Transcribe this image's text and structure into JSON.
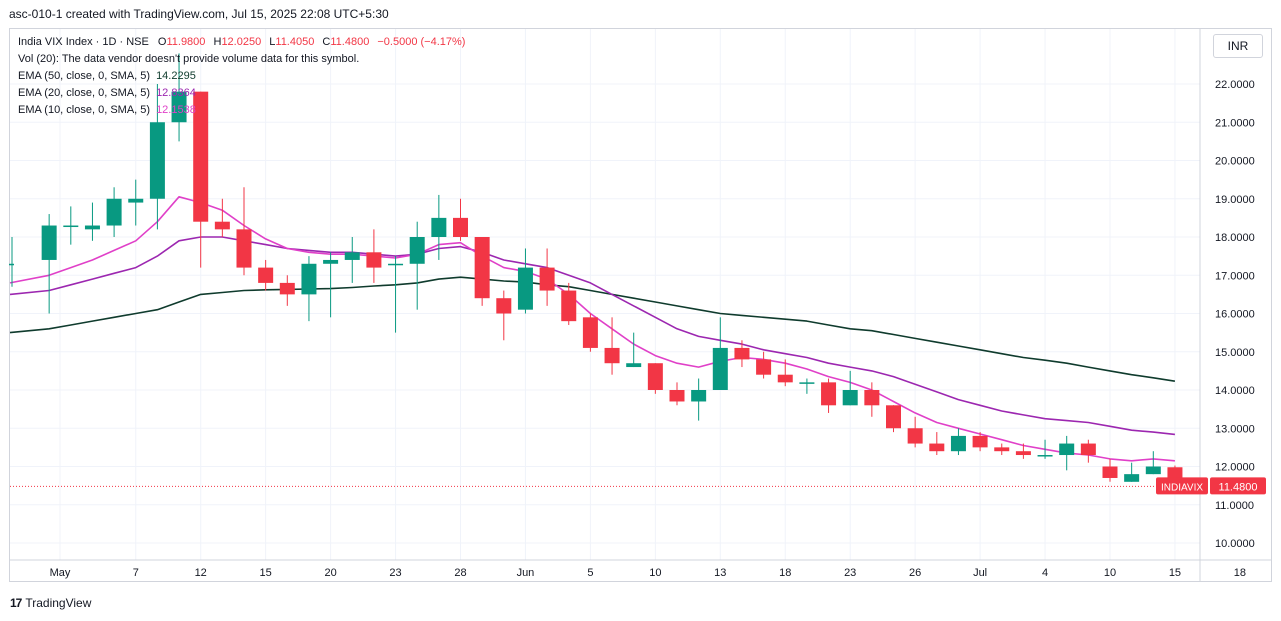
{
  "header": {
    "title": "asc-010-1 created with TradingView.com, Jul 15, 2025 22:08 UTC+5:30"
  },
  "legend": {
    "symbol_line": "India VIX Index · 1D · NSE",
    "open_label": "O",
    "open": "11.9800",
    "high_label": "H",
    "high": "12.0250",
    "low_label": "L",
    "low": "11.4050",
    "close_label": "C",
    "close": "11.4800",
    "change": "−0.5000 (−4.17%)",
    "volume_note": "Vol (20): The data vendor doesn't provide volume data for this symbol.",
    "ema50_label": "EMA (50, close, 0, SMA, 5)",
    "ema50_value": "14.2295",
    "ema20_label": "EMA (20, close, 0, SMA, 5)",
    "ema20_value": "12.8364",
    "ema10_label": "EMA (10, close, 0, SMA, 5)",
    "ema10_value": "12.1538"
  },
  "currency": "INR",
  "footer": {
    "brand": "TradingView",
    "logo_text": "17"
  },
  "colors": {
    "up": "#089981",
    "down": "#f23645",
    "ema50": "#0f3b2d",
    "ema20": "#9c27b0",
    "ema10": "#e040c8",
    "grid": "#f0f3fa"
  },
  "chart_data": {
    "type": "candlestick",
    "title": "India VIX Index · 1D · NSE",
    "ylim": [
      9.6,
      23.0
    ],
    "y_ticks": [
      10.0,
      11.0,
      12.0,
      13.0,
      14.0,
      15.0,
      16.0,
      17.0,
      18.0,
      19.0,
      20.0,
      21.0,
      22.0
    ],
    "y_tick_labels": [
      "10.0000",
      "11.0000",
      "12.0000",
      "13.0000",
      "14.0000",
      "15.0000",
      "16.0000",
      "17.0000",
      "18.0000",
      "19.0000",
      "20.0000",
      "21.0000",
      "22.0000"
    ],
    "x_tick_labels": [
      "May",
      "7",
      "12",
      "15",
      "20",
      "23",
      "28",
      "Jun",
      "5",
      "10",
      "13",
      "18",
      "23",
      "26",
      "Jul",
      "4",
      "10",
      "15",
      "18"
    ],
    "x_tick_index": [
      1.5,
      5,
      8,
      11,
      14,
      17,
      20,
      23,
      26,
      29,
      32,
      35,
      38,
      41,
      44,
      47,
      50,
      53,
      56
    ],
    "last_price_label": "INDIAVIX",
    "last_price": "11.4800",
    "candles": [
      {
        "o": 17.3,
        "h": 18.0,
        "l": 16.7,
        "c": 17.3
      },
      {
        "o": 17.4,
        "h": 18.6,
        "l": 16.0,
        "c": 18.3
      },
      {
        "o": 18.3,
        "h": 18.8,
        "l": 17.8,
        "c": 18.3
      },
      {
        "o": 18.2,
        "h": 18.9,
        "l": 17.9,
        "c": 18.3
      },
      {
        "o": 18.3,
        "h": 19.3,
        "l": 18.0,
        "c": 19.0
      },
      {
        "o": 18.9,
        "h": 19.5,
        "l": 18.3,
        "c": 19.0
      },
      {
        "o": 19.0,
        "h": 22.0,
        "l": 18.2,
        "c": 21.0
      },
      {
        "o": 21.0,
        "h": 22.8,
        "l": 20.5,
        "c": 21.8
      },
      {
        "o": 21.8,
        "h": 21.8,
        "l": 17.2,
        "c": 18.4
      },
      {
        "o": 18.4,
        "h": 19.0,
        "l": 18.0,
        "c": 18.2
      },
      {
        "o": 18.2,
        "h": 19.3,
        "l": 17.0,
        "c": 17.2
      },
      {
        "o": 17.2,
        "h": 17.4,
        "l": 16.6,
        "c": 16.8
      },
      {
        "o": 16.8,
        "h": 17.0,
        "l": 16.2,
        "c": 16.5
      },
      {
        "o": 16.5,
        "h": 17.5,
        "l": 15.8,
        "c": 17.3
      },
      {
        "o": 17.3,
        "h": 17.6,
        "l": 15.9,
        "c": 17.4
      },
      {
        "o": 17.4,
        "h": 18.0,
        "l": 16.8,
        "c": 17.6
      },
      {
        "o": 17.6,
        "h": 18.2,
        "l": 16.8,
        "c": 17.2
      },
      {
        "o": 17.3,
        "h": 17.5,
        "l": 15.5,
        "c": 17.3
      },
      {
        "o": 17.3,
        "h": 18.4,
        "l": 16.1,
        "c": 18.0
      },
      {
        "o": 18.0,
        "h": 19.1,
        "l": 17.4,
        "c": 18.5
      },
      {
        "o": 18.5,
        "h": 19.0,
        "l": 17.9,
        "c": 18.0
      },
      {
        "o": 18.0,
        "h": 18.0,
        "l": 16.2,
        "c": 16.4
      },
      {
        "o": 16.4,
        "h": 16.6,
        "l": 15.3,
        "c": 16.0
      },
      {
        "o": 16.1,
        "h": 17.7,
        "l": 16.0,
        "c": 17.2
      },
      {
        "o": 17.2,
        "h": 17.7,
        "l": 16.2,
        "c": 16.6
      },
      {
        "o": 16.6,
        "h": 16.8,
        "l": 15.7,
        "c": 15.8
      },
      {
        "o": 15.9,
        "h": 16.0,
        "l": 15.0,
        "c": 15.1
      },
      {
        "o": 15.1,
        "h": 15.9,
        "l": 14.4,
        "c": 14.7
      },
      {
        "o": 14.6,
        "h": 15.5,
        "l": 14.6,
        "c": 14.7
      },
      {
        "o": 14.7,
        "h": 14.7,
        "l": 13.9,
        "c": 14.0
      },
      {
        "o": 14.0,
        "h": 14.2,
        "l": 13.6,
        "c": 13.7
      },
      {
        "o": 13.7,
        "h": 14.3,
        "l": 13.2,
        "c": 14.0
      },
      {
        "o": 14.0,
        "h": 15.9,
        "l": 14.0,
        "c": 15.1
      },
      {
        "o": 15.1,
        "h": 15.3,
        "l": 14.6,
        "c": 14.8
      },
      {
        "o": 14.8,
        "h": 15.0,
        "l": 14.3,
        "c": 14.4
      },
      {
        "o": 14.4,
        "h": 14.8,
        "l": 14.1,
        "c": 14.2
      },
      {
        "o": 14.2,
        "h": 14.3,
        "l": 13.9,
        "c": 14.2
      },
      {
        "o": 14.2,
        "h": 14.3,
        "l": 13.4,
        "c": 13.6
      },
      {
        "o": 13.6,
        "h": 14.5,
        "l": 13.6,
        "c": 14.0
      },
      {
        "o": 14.0,
        "h": 14.2,
        "l": 13.3,
        "c": 13.6
      },
      {
        "o": 13.6,
        "h": 13.6,
        "l": 12.9,
        "c": 13.0
      },
      {
        "o": 13.0,
        "h": 13.3,
        "l": 12.5,
        "c": 12.6
      },
      {
        "o": 12.6,
        "h": 12.9,
        "l": 12.3,
        "c": 12.4
      },
      {
        "o": 12.4,
        "h": 13.0,
        "l": 12.3,
        "c": 12.8
      },
      {
        "o": 12.8,
        "h": 12.9,
        "l": 12.4,
        "c": 12.5
      },
      {
        "o": 12.5,
        "h": 12.6,
        "l": 12.3,
        "c": 12.4
      },
      {
        "o": 12.4,
        "h": 12.6,
        "l": 12.2,
        "c": 12.3
      },
      {
        "o": 12.3,
        "h": 12.7,
        "l": 12.2,
        "c": 12.3
      },
      {
        "o": 12.3,
        "h": 12.8,
        "l": 11.9,
        "c": 12.6
      },
      {
        "o": 12.6,
        "h": 12.7,
        "l": 12.1,
        "c": 12.3
      },
      {
        "o": 12.0,
        "h": 12.2,
        "l": 11.6,
        "c": 11.7
      },
      {
        "o": 11.6,
        "h": 12.1,
        "l": 11.6,
        "c": 11.8
      },
      {
        "o": 11.8,
        "h": 12.4,
        "l": 11.8,
        "c": 12.0
      },
      {
        "o": 11.98,
        "h": 12.025,
        "l": 11.405,
        "c": 11.48
      }
    ],
    "series": [
      {
        "name": "EMA (50, close, 0, SMA, 5)",
        "values": [
          15.5,
          15.6,
          15.7,
          15.8,
          15.9,
          16.0,
          16.1,
          16.3,
          16.5,
          16.55,
          16.6,
          16.62,
          16.63,
          16.64,
          16.65,
          16.68,
          16.72,
          16.75,
          16.8,
          16.9,
          16.95,
          16.9,
          16.85,
          16.82,
          16.75,
          16.7,
          16.6,
          16.5,
          16.4,
          16.3,
          16.2,
          16.1,
          16.0,
          15.95,
          15.9,
          15.85,
          15.8,
          15.7,
          15.6,
          15.55,
          15.45,
          15.35,
          15.25,
          15.15,
          15.05,
          14.95,
          14.85,
          14.78,
          14.7,
          14.6,
          14.5,
          14.4,
          14.32,
          14.23
        ]
      },
      {
        "name": "EMA (20, close, 0, SMA, 5)",
        "values": [
          16.5,
          16.6,
          16.75,
          16.9,
          17.05,
          17.2,
          17.5,
          17.9,
          18.0,
          18.0,
          17.9,
          17.8,
          17.7,
          17.65,
          17.6,
          17.6,
          17.55,
          17.5,
          17.55,
          17.7,
          17.75,
          17.6,
          17.4,
          17.3,
          17.2,
          17.0,
          16.8,
          16.5,
          16.2,
          15.9,
          15.6,
          15.4,
          15.3,
          15.2,
          15.05,
          14.95,
          14.85,
          14.7,
          14.6,
          14.5,
          14.35,
          14.15,
          13.95,
          13.75,
          13.6,
          13.45,
          13.35,
          13.25,
          13.2,
          13.15,
          13.05,
          12.95,
          12.9,
          12.84
        ]
      },
      {
        "name": "EMA (10, close, 0, SMA, 5)",
        "values": [
          16.8,
          17.0,
          17.2,
          17.4,
          17.65,
          17.9,
          18.4,
          19.05,
          18.9,
          18.7,
          18.3,
          17.95,
          17.7,
          17.6,
          17.55,
          17.55,
          17.5,
          17.45,
          17.55,
          17.8,
          17.85,
          17.5,
          17.2,
          17.1,
          16.9,
          16.5,
          16.0,
          15.6,
          15.2,
          14.9,
          14.7,
          14.6,
          14.75,
          14.85,
          14.8,
          14.7,
          14.55,
          14.35,
          14.2,
          14.0,
          13.7,
          13.4,
          13.15,
          13.0,
          12.85,
          12.7,
          12.55,
          12.45,
          12.35,
          12.3,
          12.2,
          12.15,
          12.2,
          12.15
        ]
      }
    ]
  }
}
